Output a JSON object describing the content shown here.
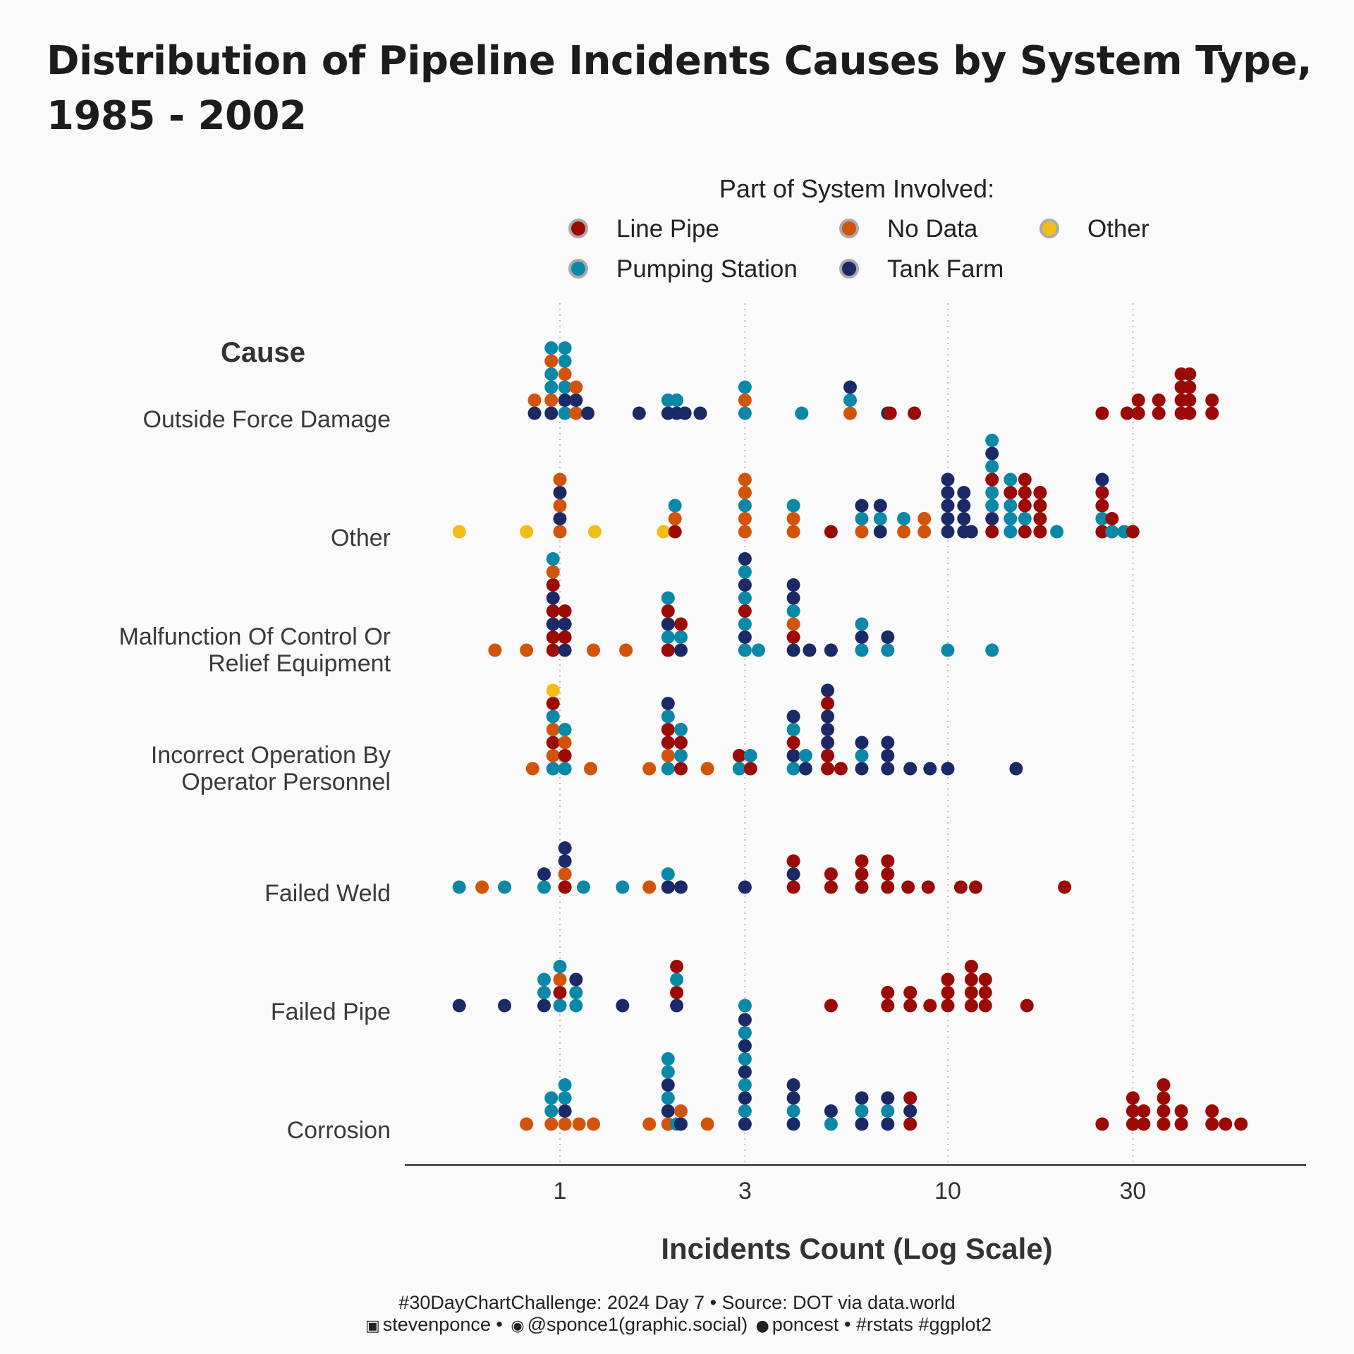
{
  "chart_data": {
    "type": "scatter",
    "title": "Distribution of Pipeline Incidents Causes by System Type, 1985 - 2002",
    "xlabel": "Incidents Count (Log Scale)",
    "ylabel": "Cause",
    "x_scale": "log",
    "xlim": [
      0.5,
      60
    ],
    "x_ticks": [
      1,
      3,
      10,
      30
    ],
    "x_tick_labels": [
      "1",
      "3",
      "10",
      "30"
    ],
    "grid": "vertical dotted at x ticks",
    "legend": {
      "title": "Part of System Involved:",
      "placement": "top",
      "entries": [
        {
          "name": "Line Pipe",
          "color": "#9b0a05"
        },
        {
          "name": "No Data",
          "color": "#d2540a"
        },
        {
          "name": "Other",
          "color": "#f2be16"
        },
        {
          "name": "Pumping Station",
          "color": "#0a88a8"
        },
        {
          "name": "Tank Farm",
          "color": "#1b2a66"
        }
      ]
    },
    "categories": [
      "Outside Force Damage",
      "Other",
      "Malfunction Of Control Or Relief Equipment",
      "Incorrect Operation By Operator Personnel",
      "Failed Weld",
      "Failed Pipe",
      "Corrosion"
    ],
    "category_lines": [
      [
        "Outside Force Damage"
      ],
      [
        "Other"
      ],
      [
        "Malfunction Of Control Or",
        "Relief Equipment"
      ],
      [
        "Incorrect Operation By",
        "Operator Personnel"
      ],
      [
        "Failed Weld"
      ],
      [
        "Failed Pipe"
      ],
      [
        "Corrosion"
      ]
    ],
    "series_note": "each point = one year; stacks list bottom-to-top colors at an x value (P=Pumping Station, N=No Data, T=Tank Farm, L=Line Pipe, O=Other)",
    "points": [
      [
        [
          0.86,
          "TN"
        ],
        [
          0.95,
          "TNPPNP"
        ],
        [
          1.03,
          "PTPNPP"
        ],
        [
          1.1,
          "NTN"
        ],
        [
          1.18,
          "T"
        ],
        [
          1.6,
          "T"
        ],
        [
          1.9,
          "TP"
        ],
        [
          2.0,
          "TP"
        ],
        [
          2.1,
          "T"
        ],
        [
          2.3,
          "T"
        ],
        [
          3.0,
          "PNP"
        ],
        [
          4.2,
          "P"
        ],
        [
          5.6,
          "NPT"
        ],
        [
          7.0,
          "T"
        ],
        [
          7.1,
          "L"
        ],
        [
          8.2,
          "L"
        ],
        [
          25,
          "L"
        ],
        [
          29,
          "L"
        ],
        [
          31,
          "LL"
        ],
        [
          35,
          "LL"
        ],
        [
          40,
          "LLLL"
        ],
        [
          42,
          "LLLL"
        ],
        [
          48,
          "LL"
        ]
      ],
      [
        [
          0.55,
          "O"
        ],
        [
          0.82,
          "O"
        ],
        [
          1.0,
          "NTNTN"
        ],
        [
          1.23,
          "O"
        ],
        [
          1.85,
          "O"
        ],
        [
          1.98,
          "LNP"
        ],
        [
          3.0,
          "NNPNN"
        ],
        [
          4.0,
          "NNP"
        ],
        [
          5.0,
          "L"
        ],
        [
          6.0,
          "NPT"
        ],
        [
          6.7,
          "TPT"
        ],
        [
          7.7,
          "NP"
        ],
        [
          8.7,
          "NN"
        ],
        [
          10,
          "TTTTT"
        ],
        [
          11,
          "TTTT"
        ],
        [
          11.5,
          "T"
        ],
        [
          13,
          "LTPPLPTP"
        ],
        [
          14.5,
          "PPPLP"
        ],
        [
          15.8,
          "LPLLL"
        ],
        [
          17.3,
          "LLLL"
        ],
        [
          19.1,
          "P"
        ],
        [
          25,
          "LPLLT"
        ],
        [
          26.5,
          "PL"
        ],
        [
          28.5,
          "P"
        ],
        [
          30,
          "L"
        ]
      ],
      [
        [
          0.68,
          "N"
        ],
        [
          0.82,
          "N"
        ],
        [
          0.96,
          "LLTLTLNP"
        ],
        [
          1.03,
          "TLTL"
        ],
        [
          1.22,
          "N"
        ],
        [
          1.48,
          "N"
        ],
        [
          1.9,
          "LPTLP"
        ],
        [
          2.05,
          "TPL"
        ],
        [
          3.0,
          "PTPLPTPT"
        ],
        [
          3.25,
          "P"
        ],
        [
          4.0,
          "TLNPTT"
        ],
        [
          4.4,
          "T"
        ],
        [
          5.0,
          "T"
        ],
        [
          6.0,
          "PTP"
        ],
        [
          7.0,
          "PT"
        ],
        [
          10,
          "P"
        ],
        [
          13,
          "P"
        ]
      ],
      [
        [
          0.85,
          "N"
        ],
        [
          0.96,
          "PNLNPLO"
        ],
        [
          1.03,
          "PLNP"
        ],
        [
          1.2,
          "N"
        ],
        [
          1.7,
          "N"
        ],
        [
          1.9,
          "PNLLPT"
        ],
        [
          2.05,
          "LPLP"
        ],
        [
          2.4,
          "N"
        ],
        [
          2.9,
          "PL"
        ],
        [
          3.1,
          "LP"
        ],
        [
          4.0,
          "PTLPT"
        ],
        [
          4.3,
          "TP"
        ],
        [
          4.9,
          "LLTTTLT"
        ],
        [
          5.3,
          "L"
        ],
        [
          6.0,
          "TPT"
        ],
        [
          7.0,
          "TTT"
        ],
        [
          8.0,
          "T"
        ],
        [
          9.0,
          "T"
        ],
        [
          10,
          "T"
        ],
        [
          15,
          "T"
        ]
      ],
      [
        [
          0.55,
          "P"
        ],
        [
          0.63,
          "N"
        ],
        [
          0.72,
          "P"
        ],
        [
          0.91,
          "PT"
        ],
        [
          1.03,
          "LNTT"
        ],
        [
          1.15,
          "P"
        ],
        [
          1.45,
          "P"
        ],
        [
          1.7,
          "N"
        ],
        [
          1.9,
          "TP"
        ],
        [
          2.05,
          "T"
        ],
        [
          3.0,
          "T"
        ],
        [
          4.0,
          "LTL"
        ],
        [
          5.0,
          "LL"
        ],
        [
          6.0,
          "LLL"
        ],
        [
          7.0,
          "LLL"
        ],
        [
          7.9,
          "L"
        ],
        [
          8.9,
          "L"
        ],
        [
          10.8,
          "L"
        ],
        [
          11.8,
          "L"
        ],
        [
          20,
          "L"
        ]
      ],
      [
        [
          0.55,
          "T"
        ],
        [
          0.72,
          "T"
        ],
        [
          0.91,
          "TPP"
        ],
        [
          1.0,
          "PLNP"
        ],
        [
          1.1,
          "PPT"
        ],
        [
          1.45,
          "T"
        ],
        [
          2.0,
          "TLPL"
        ],
        [
          3.0,
          "P"
        ],
        [
          5.0,
          "L"
        ],
        [
          7.0,
          "LL"
        ],
        [
          8.0,
          "LL"
        ],
        [
          9.0,
          "L"
        ],
        [
          10,
          "LLL"
        ],
        [
          11.5,
          "LLLL"
        ],
        [
          12.5,
          "LLL"
        ],
        [
          16,
          "L"
        ]
      ],
      [
        [
          0.82,
          "N"
        ],
        [
          0.95,
          "NPP"
        ],
        [
          1.03,
          "NTPP"
        ],
        [
          1.12,
          "N"
        ],
        [
          1.22,
          "N"
        ],
        [
          1.7,
          "N"
        ],
        [
          1.9,
          "NTPTPP"
        ],
        [
          2.0,
          "P"
        ],
        [
          2.05,
          "TN"
        ],
        [
          2.4,
          "N"
        ],
        [
          3.0,
          "TPTPTPTPT"
        ],
        [
          4.0,
          "TPTT"
        ],
        [
          5.0,
          "PT"
        ],
        [
          6.0,
          "TPT"
        ],
        [
          7.0,
          "TPT"
        ],
        [
          8.0,
          "LTL"
        ],
        [
          25,
          "L"
        ],
        [
          30,
          "LLL"
        ],
        [
          32,
          "LL"
        ],
        [
          36,
          "LLLL"
        ],
        [
          40,
          "LL"
        ],
        [
          48,
          "LL"
        ],
        [
          52,
          "L"
        ],
        [
          57,
          "L"
        ]
      ]
    ]
  },
  "caption": {
    "line1": "#30DayChartChallenge: 2024 Day 7 • Source: DOT via data.world",
    "linkedin_icon": "linkedin-icon",
    "linkedin": "stevenponce",
    "sep1": "•",
    "mastodon_icon": "mastodon-icon",
    "mastodon": "@sponce1(graphic.social)",
    "github_icon": "github-icon",
    "github": "poncest",
    "sep2": "•",
    "tags": "#rstats #ggplot2"
  }
}
